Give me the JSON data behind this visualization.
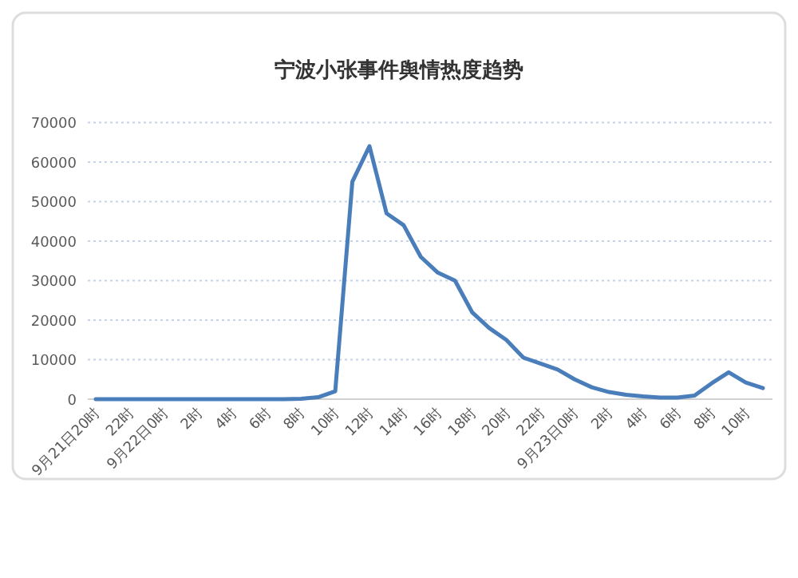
{
  "chart_data": {
    "type": "line",
    "title": "宁波小张事件舆情热度趋势",
    "categories": [
      "9月21日20时",
      null,
      "22时",
      null,
      "9月22日0时",
      null,
      "2时",
      null,
      "4时",
      null,
      "6时",
      null,
      "8时",
      null,
      "10时",
      null,
      "12时",
      null,
      "14时",
      null,
      "16时",
      null,
      "18时",
      null,
      "20时",
      null,
      "22时",
      null,
      "9月23日0时",
      null,
      "2时",
      null,
      "4时",
      null,
      "6时",
      null,
      "8时",
      null,
      "10时",
      null
    ],
    "series": [
      {
        "color": "#4a7ebb",
        "values": [
          0,
          0,
          0,
          0,
          0,
          0,
          0,
          0,
          0,
          0,
          0,
          0,
          100,
          500,
          2000,
          55000,
          64000,
          47000,
          44000,
          36000,
          32000,
          30000,
          22000,
          18000,
          15000,
          10500,
          9000,
          7500,
          5000,
          3000,
          1800,
          1100,
          700,
          400,
          400,
          900,
          4000,
          6800,
          4200,
          2800
        ]
      }
    ],
    "ylim": [
      0,
      70000
    ],
    "yticks": [
      0,
      10000,
      20000,
      30000,
      40000,
      50000,
      60000,
      70000
    ],
    "grid": "y"
  }
}
